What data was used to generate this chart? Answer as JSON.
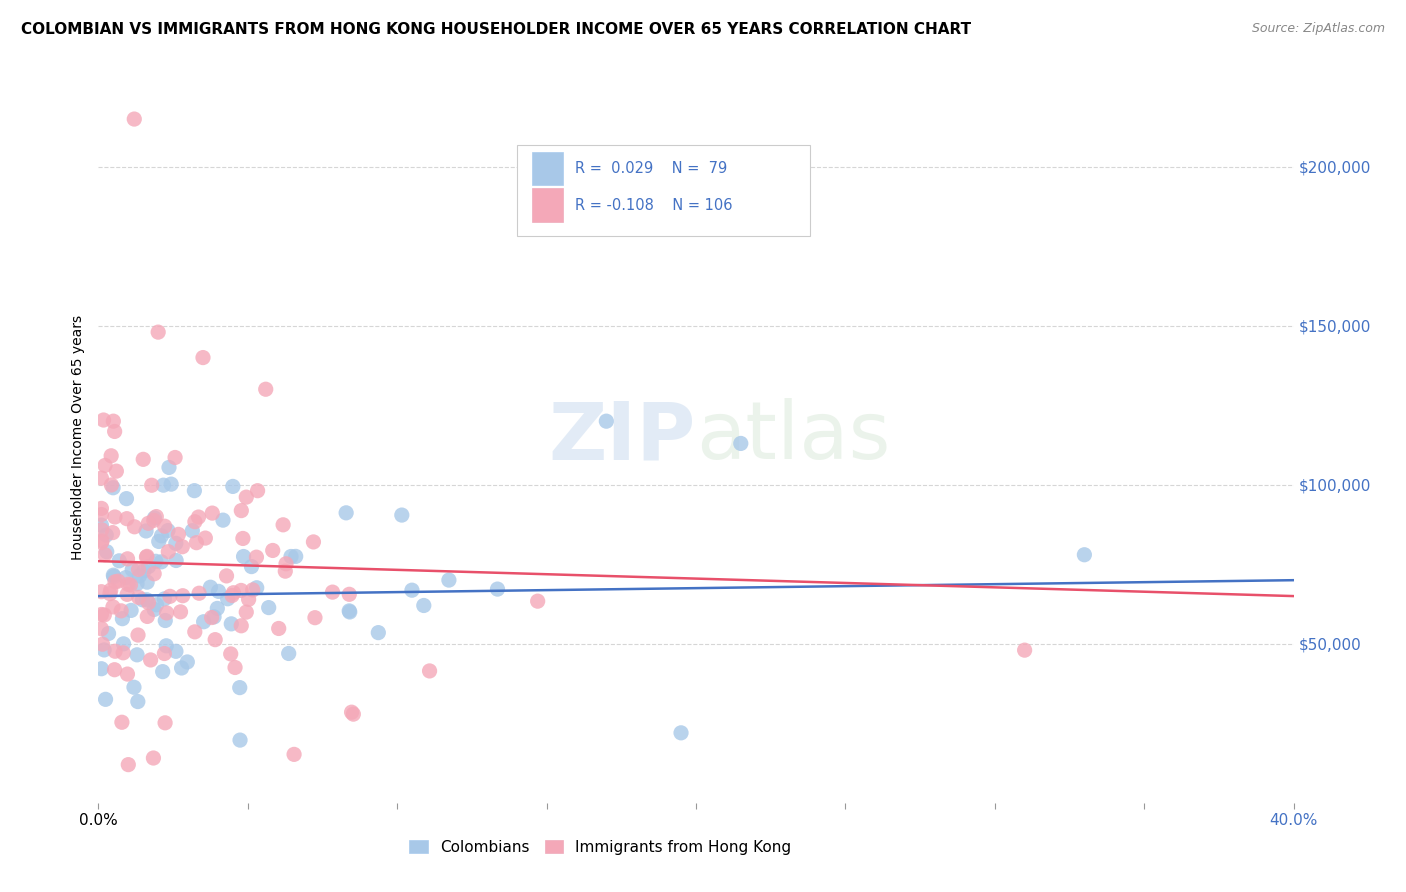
{
  "title": "COLOMBIAN VS IMMIGRANTS FROM HONG KONG HOUSEHOLDER INCOME OVER 65 YEARS CORRELATION CHART",
  "source": "Source: ZipAtlas.com",
  "ylabel": "Householder Income Over 65 years",
  "legend_blue_label": "Colombians",
  "legend_pink_label": "Immigrants from Hong Kong",
  "blue_color": "#A8C8E8",
  "pink_color": "#F4A8B8",
  "blue_line_color": "#4472C4",
  "pink_line_color": "#E8506A",
  "r_text_color": "#4472C4",
  "ytick_color": "#4472C4",
  "background_color": "#FFFFFF",
  "grid_color": "#CCCCCC",
  "ylim": [
    0,
    230000
  ],
  "xlim": [
    0.0,
    0.4
  ],
  "yticks": [
    50000,
    100000,
    150000,
    200000
  ],
  "ytick_labels": [
    "$50,000",
    "$100,000",
    "$150,000",
    "$200,000"
  ],
  "watermark_zip": "ZIP",
  "watermark_atlas": "atlas",
  "title_fontsize": 11,
  "source_fontsize": 9,
  "N_blue": 79,
  "N_pink": 106,
  "R_blue": 0.029,
  "R_pink": -0.108
}
